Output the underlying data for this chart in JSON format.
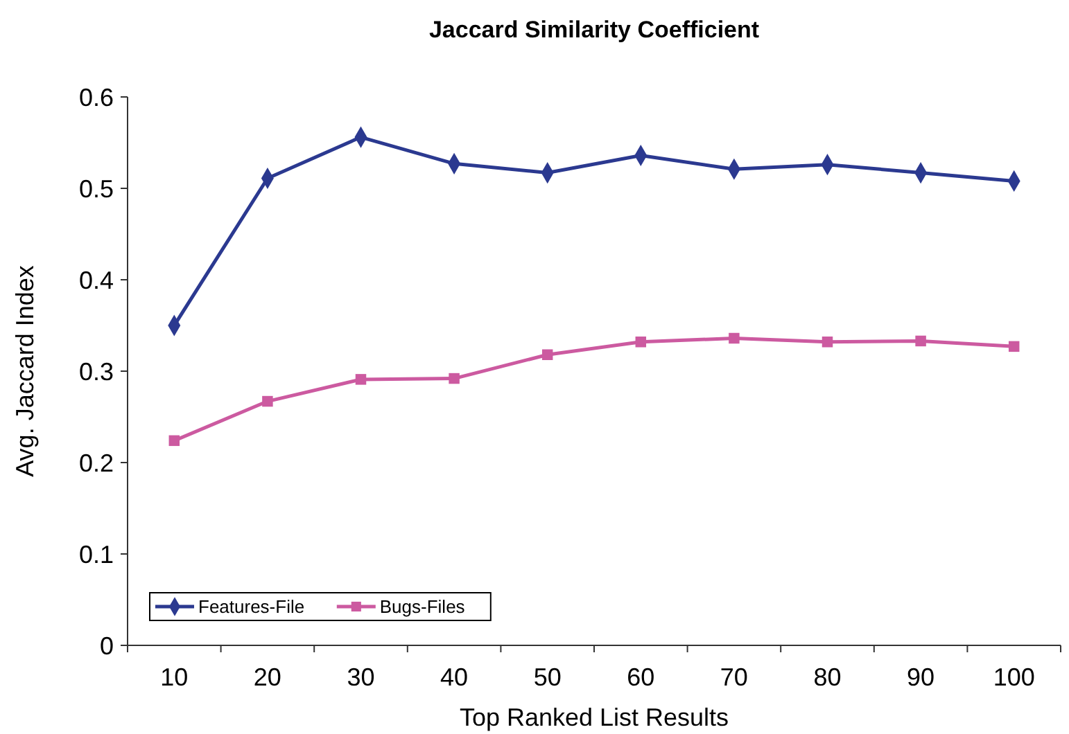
{
  "chart_data": {
    "type": "line",
    "title": "Jaccard Similarity Coefficient",
    "xlabel": "Top Ranked List Results",
    "ylabel": "Avg. Jaccard Index",
    "categories": [
      "10",
      "20",
      "30",
      "40",
      "50",
      "60",
      "70",
      "80",
      "90",
      "100"
    ],
    "series": [
      {
        "name": "Features-File",
        "color": "#2b3990",
        "marker": "diamond",
        "values": [
          0.35,
          0.511,
          0.556,
          0.527,
          0.517,
          0.536,
          0.521,
          0.526,
          0.517,
          0.508
        ]
      },
      {
        "name": "Bugs-Files",
        "color": "#cc5aa0",
        "marker": "square",
        "values": [
          0.224,
          0.267,
          0.291,
          0.292,
          0.318,
          0.332,
          0.336,
          0.332,
          0.333,
          0.327
        ]
      }
    ],
    "ylim": [
      0,
      0.6
    ],
    "yticks": [
      0,
      0.1,
      0.2,
      0.3,
      0.4,
      0.5,
      0.6
    ],
    "grid": false,
    "legend": "bottom left",
    "line_style": "solid"
  }
}
